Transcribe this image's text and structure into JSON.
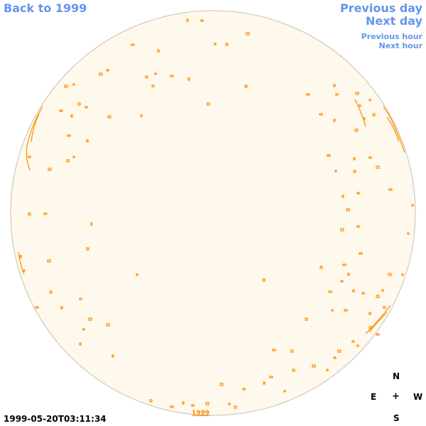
{
  "nav": {
    "back_label": "Back to 1999",
    "prev_day_label": "Previous day",
    "next_day_label": "Next day",
    "prev_hour_label": "Previous hour",
    "next_hour_label": "Next hour"
  },
  "footer": {
    "timestamp": "1999-05-20T03:11:34",
    "year_link": "1999"
  },
  "compass": {
    "north": "N",
    "east": "E",
    "center": "+",
    "west": "W",
    "south": "S"
  },
  "colors": {
    "link": "#6495ed",
    "disk_fill": "#fff8ec",
    "disk_edge": "#c8c0b4",
    "feature": "#ff8c00"
  }
}
